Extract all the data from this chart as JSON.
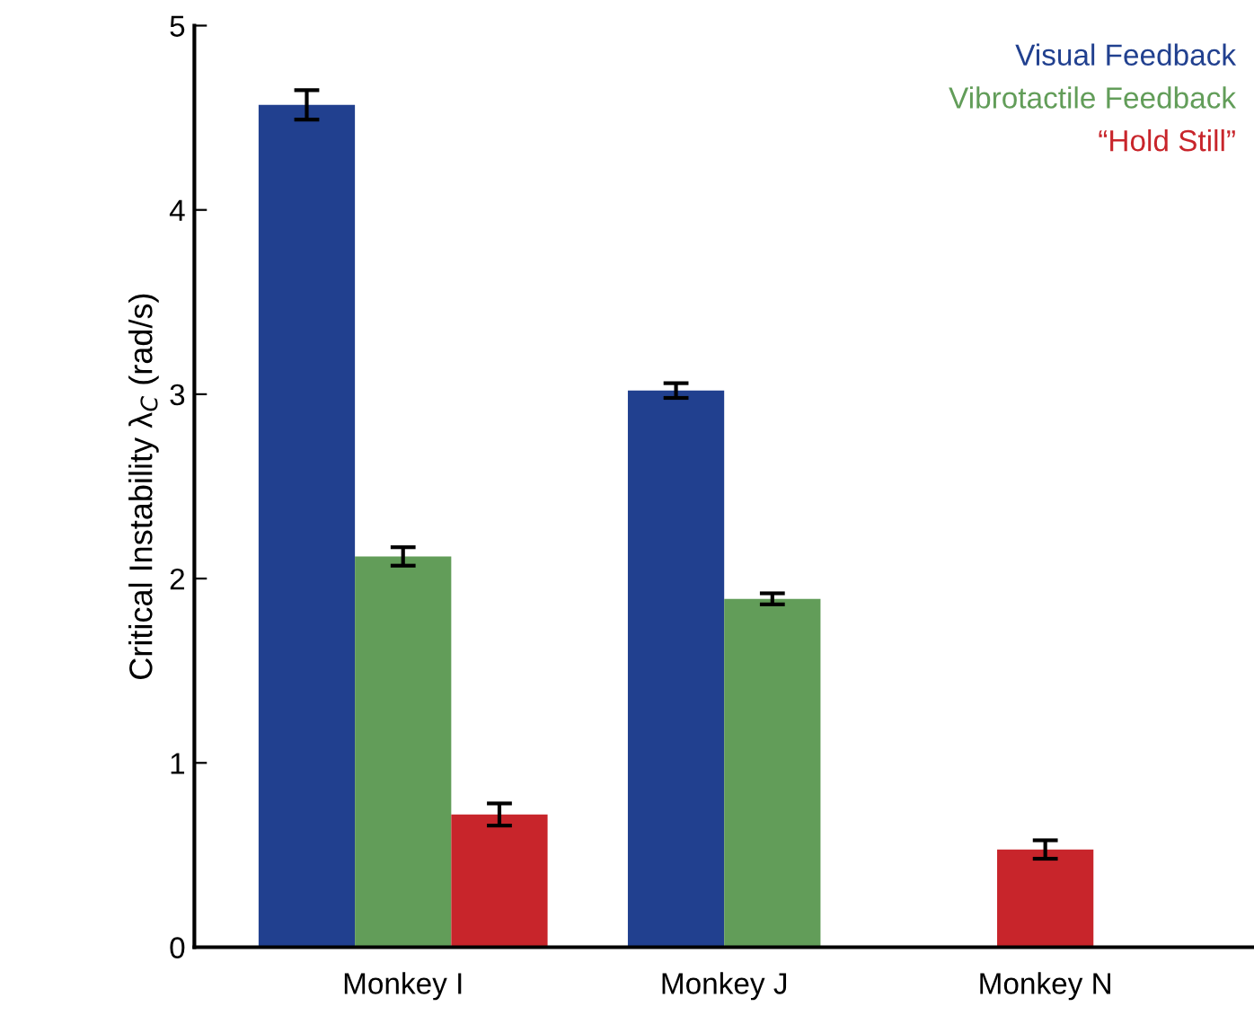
{
  "chart_data": {
    "type": "bar",
    "ylabel": "Critical Instability λ$_{C}$ (rad/s)",
    "categories": [
      "Monkey I",
      "Monkey J",
      "Monkey N"
    ],
    "series": [
      {
        "name": "Visual Feedback",
        "color": "#21408f",
        "values": [
          4.57,
          3.02,
          null
        ],
        "errors": [
          0.08,
          0.04,
          null
        ]
      },
      {
        "name": "Vibrotactile Feedback",
        "color": "#629d59",
        "values": [
          2.12,
          1.89,
          null
        ],
        "errors": [
          0.05,
          0.03,
          null
        ]
      },
      {
        "name": "“Hold Still”",
        "color": "#c8252b",
        "values": [
          0.72,
          null,
          0.53
        ],
        "errors": [
          0.06,
          null,
          0.05
        ]
      }
    ],
    "ylim": [
      0,
      5
    ],
    "yticks": [
      0,
      1,
      2,
      3,
      4,
      5
    ],
    "grid": false,
    "legend": "top right"
  }
}
